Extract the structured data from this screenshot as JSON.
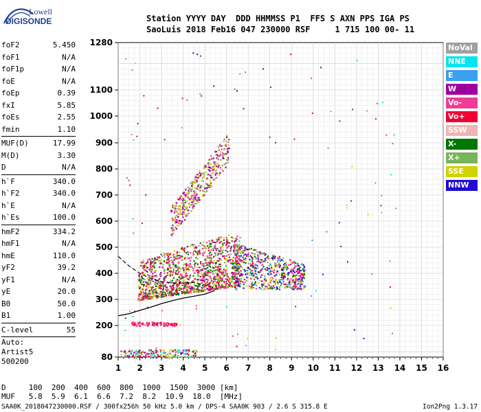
{
  "logo": {
    "line1": "Lowell",
    "line2": "DIGISONDE"
  },
  "header": {
    "line1": "Station YYYY DAY  DDD HHMMSS P1  FFS S AXN PPS IGA PS",
    "line2": "SaoLuis 2018 Feb16 047 230000 RSF     1 715 100 00- 11"
  },
  "params": {
    "group1": [
      {
        "name": "foF2",
        "value": "5.450"
      },
      {
        "name": "foF1",
        "value": "N/A"
      },
      {
        "name": "foF1p",
        "value": "N/A"
      },
      {
        "name": "foE",
        "value": "N/A"
      },
      {
        "name": "foEp",
        "value": "0.39"
      },
      {
        "name": "fxI",
        "value": "5.85"
      },
      {
        "name": "foEs",
        "value": "2.55"
      },
      {
        "name": "fmin",
        "value": "1.10"
      }
    ],
    "group2": [
      {
        "name": "MUF(D)",
        "value": "17.99"
      },
      {
        "name": "M(D)",
        "value": "3.30"
      },
      {
        "name": "D",
        "value": "N/A"
      }
    ],
    "group3": [
      {
        "name": "h`F",
        "value": "340.0"
      },
      {
        "name": "h`F2",
        "value": "340.0"
      },
      {
        "name": "h`E",
        "value": "N/A"
      },
      {
        "name": "h`Es",
        "value": "100.0"
      }
    ],
    "group4": [
      {
        "name": "hmF2",
        "value": "334.2"
      },
      {
        "name": "hmF1",
        "value": "N/A"
      },
      {
        "name": "hmE",
        "value": "110.0"
      },
      {
        "name": "yF2",
        "value": "39.2"
      },
      {
        "name": "yF1",
        "value": "N/A"
      },
      {
        "name": "yE",
        "value": "20.0"
      },
      {
        "name": "B0",
        "value": "50.0"
      },
      {
        "name": "B1",
        "value": "1.00"
      }
    ],
    "group5": [
      {
        "name": "C-level",
        "value": "55"
      }
    ],
    "auto": [
      "Auto:",
      "Artist5",
      "500200"
    ]
  },
  "legend": [
    {
      "label": "NoVal",
      "color": "#a0a0a0"
    },
    {
      "label": "NNE",
      "color": "#00e5f0"
    },
    {
      "label": "E",
      "color": "#3aa0f0"
    },
    {
      "label": "W",
      "color": "#a000a0"
    },
    {
      "label": "Vo-",
      "color": "#f03c96"
    },
    {
      "label": "Vo+",
      "color": "#f00032"
    },
    {
      "label": "SSW",
      "color": "#f0b4b4"
    },
    {
      "label": "X-",
      "color": "#007800"
    },
    {
      "label": "X+",
      "color": "#78b45a"
    },
    {
      "label": "SSE",
      "color": "#d2d200"
    },
    {
      "label": "NNW",
      "color": "#1e0ad2"
    }
  ],
  "bottom": {
    "d_line": "D     100  200  400  600  800  1000  1500  3000 [km]",
    "muf_line": "MUF   5.8  5.9  6.1  6.6  7.2  8.2  10.9  18.0  [MHz]",
    "footer_left": "SAA0K_2018047230000.RSF / 300fx256h 50 kHz 5.0 km / DPS-4 SAA0K 903 / 2.6 S 315.8 E",
    "footer_right": "Ion2Png 1.3.17"
  },
  "chart_data": {
    "type": "scatter",
    "x_ticks": [
      "1",
      "2",
      "3",
      "4",
      "5",
      "6",
      "7",
      "8",
      "9",
      "10",
      "11",
      "12",
      "13",
      "14",
      "15",
      "16"
    ],
    "y_ticks": [
      "80",
      "200",
      "300",
      "400",
      "500",
      "600",
      "700",
      "800",
      "900",
      "1000",
      "1100",
      "1280"
    ],
    "xlim": [
      1,
      16
    ],
    "ylim": [
      80,
      1280
    ],
    "y_scale": "virtual-height (piecewise)",
    "grid": true,
    "clusters": [
      {
        "mode": "F2 main",
        "x_range": [
          1.9,
          6.6
        ],
        "y_range": [
          280,
          560
        ],
        "colors": [
          "#f00032",
          "#d2d200",
          "#a000a0",
          "#f03c96",
          "#78b45a",
          "#007800"
        ]
      },
      {
        "mode": "F2 extension",
        "x_range": [
          6.3,
          9.6
        ],
        "y_range": [
          330,
          520
        ],
        "colors": [
          "#f00032",
          "#f03c96",
          "#d2d200",
          "#a000a0",
          "#78b45a",
          "#1e0ad2",
          "#3aa0f0",
          "#007800"
        ]
      },
      {
        "mode": "2F2 multihop",
        "x_range": [
          3.4,
          6.1
        ],
        "y_range": [
          560,
          890
        ],
        "colors": [
          "#d2d200",
          "#a000a0",
          "#f03c96",
          "#78b45a"
        ]
      },
      {
        "mode": "Es",
        "x_range": [
          1.1,
          4.6
        ],
        "y_range": [
          80,
          110
        ],
        "colors": [
          "#f00032",
          "#00e5f0",
          "#d2d200",
          "#a000a0",
          "#78b45a"
        ]
      },
      {
        "mode": "2Es",
        "x_range": [
          1.6,
          3.7
        ],
        "y_range": [
          200,
          215
        ],
        "colors": [
          "#f00032",
          "#f03c96"
        ]
      }
    ],
    "profile_curve": [
      [
        1.0,
        237
      ],
      [
        1.5,
        245
      ],
      [
        2.0,
        258
      ],
      [
        2.5,
        270
      ],
      [
        3.0,
        284
      ],
      [
        3.5,
        295
      ],
      [
        4.0,
        305
      ],
      [
        4.5,
        312
      ],
      [
        5.0,
        320
      ],
      [
        5.45,
        334
      ]
    ],
    "trace_curve": [
      [
        1.0,
        465
      ],
      [
        1.5,
        428
      ],
      [
        2.0,
        400
      ],
      [
        2.5,
        380
      ],
      [
        3.0,
        368
      ],
      [
        3.5,
        364
      ],
      [
        4.0,
        362
      ],
      [
        4.5,
        365
      ],
      [
        5.0,
        355
      ],
      [
        5.45,
        345
      ]
    ]
  }
}
